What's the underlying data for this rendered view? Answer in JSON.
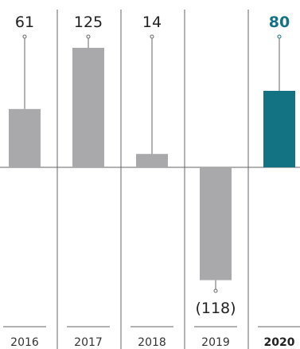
{
  "chart_data": {
    "type": "bar",
    "categories": [
      "2016",
      "2017",
      "2018",
      "2019",
      "2020"
    ],
    "values": [
      61,
      125,
      14,
      -118,
      80
    ],
    "value_labels": [
      "61",
      "125",
      "14",
      "(118)",
      "80"
    ],
    "highlight_index": 4,
    "colors": {
      "bar": "#a9a9ac",
      "highlight": "#147383",
      "lines": "#666666",
      "highlight_text": "#147383"
    },
    "grid": false,
    "legend": "none"
  }
}
